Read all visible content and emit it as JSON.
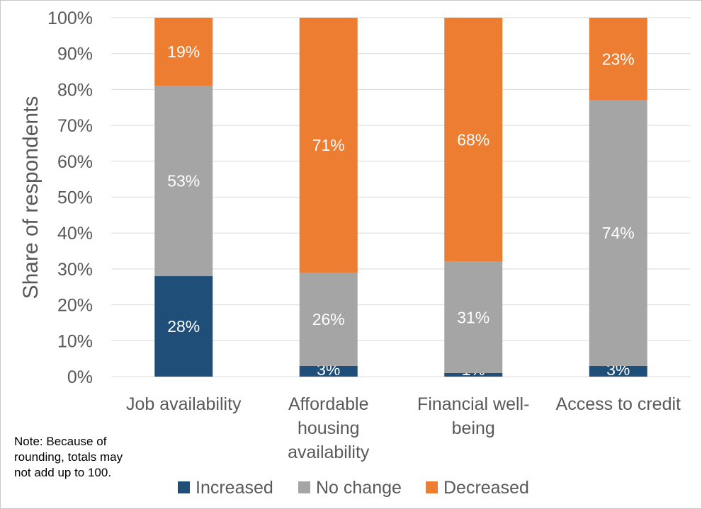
{
  "chart_data": {
    "type": "bar",
    "stacked": true,
    "categories": [
      [
        "Job availability"
      ],
      [
        "Affordable",
        "housing",
        "availability"
      ],
      [
        "Financial well-",
        "being"
      ],
      [
        "Access to credit"
      ]
    ],
    "series": [
      {
        "name": "Increased",
        "color": "#1f4e79",
        "values": [
          28,
          3,
          1,
          3
        ]
      },
      {
        "name": "No change",
        "color": "#a5a5a5",
        "values": [
          53,
          26,
          31,
          74
        ]
      },
      {
        "name": "Decreased",
        "color": "#ed7d31",
        "values": [
          19,
          71,
          68,
          23
        ]
      }
    ],
    "title": "",
    "xlabel": "",
    "ylabel": "Share of respondents",
    "ylim": [
      0,
      100
    ],
    "yticks": [
      "0%",
      "10%",
      "20%",
      "30%",
      "40%",
      "50%",
      "60%",
      "70%",
      "80%",
      "90%",
      "100%"
    ],
    "grid": true,
    "legend": "bottom"
  },
  "note": "Note: Because of rounding, totals may not add up to 100.",
  "colors": {
    "grid": "#d9d9d9",
    "text": "#595959"
  }
}
